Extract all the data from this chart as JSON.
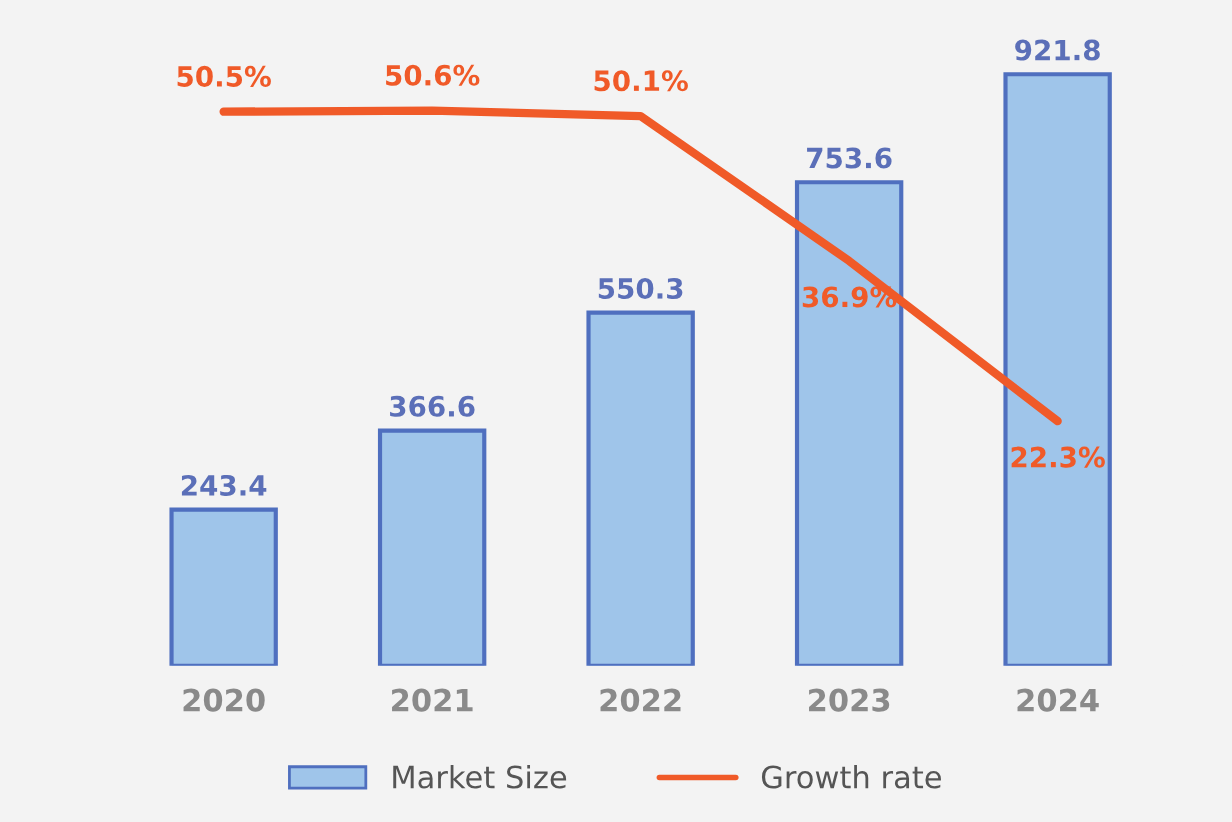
{
  "chart_data": {
    "type": "bar",
    "categories": [
      "2020",
      "2021",
      "2022",
      "2023",
      "2024"
    ],
    "series": [
      {
        "name": "Market Size",
        "color": "#9fc5ea",
        "values": [
          243.4,
          366.6,
          550.3,
          753.6,
          921.8
        ]
      },
      {
        "name": "Growth rate",
        "type": "line",
        "axis": "y2",
        "color": "#f05a28",
        "values": [
          50.5,
          50.6,
          50.1,
          36.9,
          22.3
        ],
        "value_labels": [
          "50.5%",
          "50.6%",
          "50.1%",
          "36.9%",
          "22.3%"
        ]
      }
    ],
    "data_labels": true,
    "legend": "bottom",
    "grid": false
  }
}
